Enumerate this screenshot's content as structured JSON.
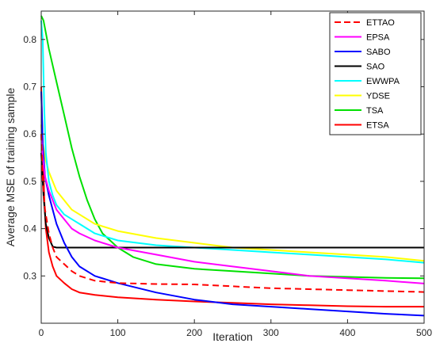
{
  "chart_data": {
    "type": "line",
    "xlabel": "Iteration",
    "ylabel": "Average MSE of training sample",
    "xlim": [
      0,
      500
    ],
    "ylim": [
      0.2,
      0.86
    ],
    "xticks": [
      0,
      100,
      200,
      300,
      400,
      500
    ],
    "yticks": [
      0.3,
      0.4,
      0.5,
      0.6,
      0.7,
      0.8
    ],
    "xtick_labels": [
      "0",
      "100",
      "200",
      "300",
      "400",
      "500"
    ],
    "ytick_labels": [
      "0.3",
      "0.4",
      "0.5",
      "0.6",
      "0.7",
      "0.8"
    ],
    "grid": false,
    "legend_position": "top-right",
    "series": [
      {
        "name": "ETTAO",
        "color": "#ff0000",
        "dash": true,
        "x": [
          0,
          2,
          5,
          10,
          15,
          20,
          30,
          40,
          50,
          70,
          100,
          150,
          200,
          250,
          300,
          350,
          400,
          450,
          500
        ],
        "y": [
          0.6,
          0.5,
          0.44,
          0.39,
          0.36,
          0.34,
          0.325,
          0.31,
          0.3,
          0.29,
          0.285,
          0.283,
          0.282,
          0.278,
          0.274,
          0.272,
          0.27,
          0.268,
          0.266
        ]
      },
      {
        "name": "EPSA",
        "color": "#ff00ff",
        "dash": false,
        "x": [
          0,
          2,
          5,
          10,
          15,
          20,
          30,
          40,
          50,
          70,
          100,
          150,
          200,
          250,
          300,
          350,
          400,
          450,
          500
        ],
        "y": [
          0.6,
          0.55,
          0.51,
          0.48,
          0.46,
          0.44,
          0.42,
          0.4,
          0.39,
          0.375,
          0.36,
          0.345,
          0.33,
          0.32,
          0.31,
          0.3,
          0.295,
          0.29,
          0.284
        ]
      },
      {
        "name": "SABO",
        "color": "#0000ff",
        "dash": false,
        "x": [
          0,
          2,
          5,
          10,
          15,
          20,
          30,
          40,
          50,
          70,
          100,
          150,
          200,
          250,
          300,
          350,
          400,
          450,
          500
        ],
        "y": [
          0.69,
          0.58,
          0.51,
          0.47,
          0.44,
          0.41,
          0.37,
          0.34,
          0.32,
          0.3,
          0.285,
          0.265,
          0.25,
          0.24,
          0.235,
          0.23,
          0.225,
          0.22,
          0.216
        ]
      },
      {
        "name": "SAO",
        "color": "#000000",
        "dash": false,
        "x": [
          0,
          3,
          6,
          10,
          15,
          20,
          500
        ],
        "y": [
          0.56,
          0.47,
          0.41,
          0.38,
          0.362,
          0.36,
          0.36
        ]
      },
      {
        "name": "EWWPA",
        "color": "#00ffff",
        "dash": false,
        "x": [
          0,
          2,
          4,
          6,
          10,
          15,
          20,
          30,
          40,
          50,
          70,
          100,
          150,
          200,
          250,
          300,
          350,
          400,
          450,
          500
        ],
        "y": [
          0.84,
          0.8,
          0.65,
          0.56,
          0.5,
          0.47,
          0.45,
          0.43,
          0.42,
          0.41,
          0.39,
          0.375,
          0.365,
          0.36,
          0.355,
          0.35,
          0.345,
          0.34,
          0.335,
          0.328
        ]
      },
      {
        "name": "YDSE",
        "color": "#ffff00",
        "dash": false,
        "x": [
          0,
          2,
          5,
          10,
          15,
          20,
          30,
          40,
          50,
          70,
          100,
          150,
          200,
          250,
          300,
          350,
          400,
          450,
          500
        ],
        "y": [
          0.62,
          0.58,
          0.55,
          0.52,
          0.5,
          0.48,
          0.46,
          0.44,
          0.43,
          0.41,
          0.395,
          0.38,
          0.37,
          0.36,
          0.355,
          0.35,
          0.345,
          0.34,
          0.332
        ]
      },
      {
        "name": "TSA",
        "color": "#00e000",
        "dash": false,
        "x": [
          0,
          3,
          10,
          20,
          30,
          40,
          50,
          60,
          70,
          80,
          90,
          100,
          120,
          150,
          200,
          250,
          300,
          350,
          400,
          450,
          500
        ],
        "y": [
          0.85,
          0.84,
          0.78,
          0.71,
          0.64,
          0.57,
          0.51,
          0.46,
          0.42,
          0.39,
          0.375,
          0.36,
          0.34,
          0.325,
          0.315,
          0.31,
          0.305,
          0.3,
          0.298,
          0.296,
          0.295
        ]
      },
      {
        "name": "ETSA",
        "color": "#ff0000",
        "dash": false,
        "x": [
          0,
          2,
          4,
          6,
          10,
          15,
          20,
          30,
          40,
          50,
          70,
          100,
          150,
          200,
          250,
          300,
          350,
          400,
          450,
          500
        ],
        "y": [
          0.7,
          0.58,
          0.46,
          0.4,
          0.35,
          0.32,
          0.3,
          0.285,
          0.272,
          0.265,
          0.26,
          0.255,
          0.25,
          0.246,
          0.243,
          0.24,
          0.238,
          0.236,
          0.235,
          0.235
        ]
      }
    ]
  }
}
